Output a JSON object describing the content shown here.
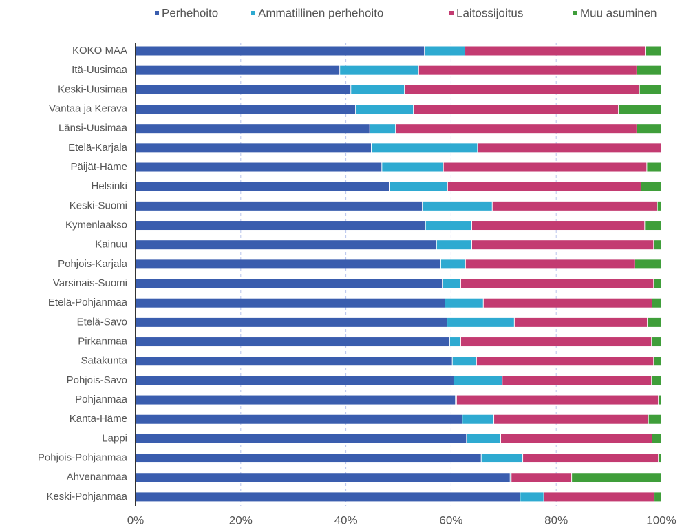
{
  "chart_data": {
    "type": "stacked_barh",
    "categories": [
      "KOKO MAA",
      "Itä-Uusimaa",
      "Keski-Uusimaa",
      "Vantaa ja Kerava",
      "Länsi-Uusimaa",
      "Etelä-Karjala",
      "Päijät-Häme",
      "Helsinki",
      "Keski-Suomi",
      "Kymenlaakso",
      "Kainuu",
      "Pohjois-Karjala",
      "Varsinais-Suomi",
      "Etelä-Pohjanmaa",
      "Etelä-Savo",
      "Pirkanmaa",
      "Satakunta",
      "Pohjois-Savo",
      "Pohjanmaa",
      "Kanta-Häme",
      "Lappi",
      "Pohjois-Pohjanmaa",
      "Ahvenanmaa",
      "Keski-Pohjanmaa"
    ],
    "series": [
      {
        "name": "Perhehoito",
        "color": "#3a5dae",
        "values": [
          55.0,
          38.9,
          41.0,
          41.9,
          44.6,
          44.9,
          46.9,
          48.3,
          54.6,
          55.2,
          57.3,
          58.1,
          58.4,
          58.9,
          59.3,
          59.8,
          60.3,
          60.6,
          60.9,
          62.2,
          63.0,
          65.8,
          71.3,
          73.2
        ]
      },
      {
        "name": "Ammatillinen perhehoito",
        "color": "#2eaad1",
        "values": [
          7.7,
          15.0,
          10.2,
          11.0,
          4.9,
          20.2,
          11.7,
          11.1,
          13.3,
          8.8,
          6.7,
          4.7,
          3.5,
          7.3,
          12.8,
          2.1,
          4.6,
          9.2,
          0.2,
          6.0,
          6.5,
          7.9,
          0.2,
          4.5
        ]
      },
      {
        "name": "Laitossijoitus",
        "color": "#c33b71",
        "values": [
          34.3,
          41.5,
          44.7,
          39.0,
          45.9,
          34.9,
          38.7,
          36.8,
          31.4,
          32.9,
          34.6,
          32.2,
          36.7,
          32.1,
          25.3,
          36.3,
          33.7,
          28.4,
          38.4,
          29.4,
          28.8,
          25.8,
          11.5,
          21.0
        ]
      },
      {
        "name": "Muu asuminen",
        "color": "#3f9e3a",
        "values": [
          3.0,
          4.6,
          4.1,
          8.1,
          4.6,
          0,
          2.7,
          3.8,
          0.7,
          3.1,
          1.4,
          5.0,
          1.4,
          1.7,
          2.6,
          1.8,
          1.4,
          1.8,
          0.5,
          2.4,
          1.7,
          0.5,
          17.0,
          1.3
        ]
      }
    ],
    "xlim": [
      0,
      100
    ],
    "xticks": [
      {
        "value": 0,
        "label": "0%"
      },
      {
        "value": 20,
        "label": "20%"
      },
      {
        "value": 40,
        "label": "40%"
      },
      {
        "value": 60,
        "label": "60%"
      },
      {
        "value": 80,
        "label": "80%"
      },
      {
        "value": 100,
        "label": "100%"
      }
    ],
    "grid": true,
    "legend": "top"
  }
}
